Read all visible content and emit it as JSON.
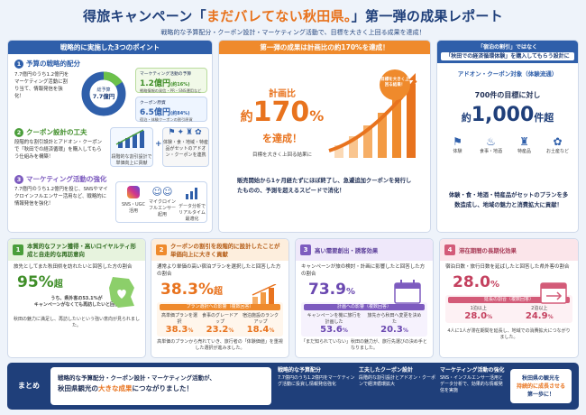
{
  "header": {
    "title_pre": "得旅キャンペーン「",
    "title_hl": "まだバレてない秋田県。",
    "title_post": "」第一弾の成果レポート",
    "subtitle": "戦略的な予算配分・クーポン設計・マーケティング活動で、目標を大きく上回る成果を達成！"
  },
  "col1": {
    "title": "戦略的に実施した3つのポイント",
    "p1": {
      "num": "1",
      "heading": "予算の戦略的配分",
      "text": "7.7億円のうち1.2億円をマーケティング活動に割り当て、情報発信を強化！",
      "donut_label": "総予算",
      "donut_value": "7.7億円",
      "mkt_label": "マーケティング活動の予算",
      "mkt_value": "1.2億円",
      "mkt_pct": "(約16%)",
      "mkt_note": "戦略情報の発信・PR・SNS運用など",
      "coupon_label": "クーポン原資",
      "coupon_value": "6.5億円",
      "coupon_pct": "(約84%)",
      "coupon_note": "宿泊・体験クーポンの割引原資",
      "share_mkt": 16,
      "share_coupon": 84
    },
    "p2": {
      "num": "2",
      "heading": "クーポン設計の工夫",
      "text": "段階的な割引設計とアドオン・クーポンで「秋田での経済循環」を購入してもらう仕組みを構築！",
      "chart_caption": "段階的な割引設計で単価向上に貢献",
      "addon_caption": "体験・食・地域・特産品がセットのアドオン・クーポンを連携"
    },
    "p3": {
      "num": "3",
      "heading": "マーケティング活動の強化",
      "text": "7.7億円のうち1.2億円を投じ、SNSやマイクロインフルエンサー活用など、戦略的に情報発信を強化！",
      "i1": "SNS・UGC活用",
      "i2": "マイクロインフルエンサー起用",
      "i3": "データ分析でリアルタイム最適化"
    }
  },
  "col2": {
    "title": "第一弾の成果は計画比の約170%を達成！",
    "ratio_label": "計画比",
    "ratio_prefix": "約",
    "ratio_value": "170",
    "ratio_unit": "%",
    "ratio_suffix": "を達成！",
    "note": "目標を大きく上回る結果に",
    "callout": "目標を大きく上回る結果！",
    "text": "販売開始から1ヶ月経たずにほぼ終了し、急遽追加クーポンを発行したものの、予測を超えるスピードで消化！"
  },
  "col3": {
    "title1": "「宿泊の割引」ではなく",
    "title2": "「秋田での経済循環体験」を購入してもらう設計に",
    "addon_label": "アドオン・クーポン対象（体験流通）",
    "target_text": "700件の目標に対し",
    "result_prefix": "約",
    "result_value": "1,000",
    "result_unit": "件超",
    "cats": [
      "体験",
      "食事・地酒",
      "特産品",
      "お土産など"
    ],
    "text": "体験・食・地酒・特産品がセットのプランを多数造成し、地域の魅力と消費拡大に貢献！"
  },
  "b1": {
    "num": "1",
    "heading": "本質的なファン獲得・高いロイヤルティ形成と自走的な再訪意向",
    "desc": "旅先としてまた秋田県を訪れたいと回答した方の割合",
    "value": "95%",
    "suffix": "超",
    "note1": "うち、県外客の53.1%が",
    "note2": "キャンペーンがなくても再訪したいと回答",
    "foot": "秋田の魅力に満足し、再訪したいという強い意向が見られました。",
    "ratio": 95
  },
  "b2": {
    "num": "2",
    "heading": "クーポンの割引を段階的に設計したことが単価向上に大きく貢献",
    "desc": "通常より単価の高い宿泊プランを選択したと回答した方の割合",
    "value": "38.3%",
    "suffix": "超",
    "sub_title": "プラン選択への影響（複数回答）",
    "s1_label": "高単価プランを選択",
    "s1_value": "38.3",
    "s1_unit": "%",
    "s2_label": "食事のグレードアップ",
    "s2_value": "23.2",
    "s2_unit": "%",
    "s3_label": "宿泊施設のランクアップ",
    "s3_value": "18.4",
    "s3_unit": "%",
    "foot": "高単価のプランから売れていき、旅行者の「体験価値」を重視した選択が進みました。",
    "ratio": 38.3
  },
  "b3": {
    "num": "3",
    "heading": "高い需要創出・誘客効果",
    "desc": "キャンペーンが旅の検討・計画に影響したと回答した方の割合",
    "value": "73.9",
    "unit": "%",
    "sub_title": "計画への影響（複数回答）",
    "s1_label": "キャンペーンを機に旅行を計画した",
    "s1_value": "53.6",
    "s1_unit": "%",
    "s2_label": "旅先から秋田へ変更を決めた",
    "s2_value": "20.3",
    "s2_unit": "%",
    "foot": "「まだ知られていない」秋田の魅力が、旅行先選びの決め手となりました。",
    "ratio": 73.9
  },
  "b4": {
    "num": "4",
    "heading": "滞在期間の長期化効果",
    "desc": "宿泊日数・旅行日数を延ばしたと回答した県外客の割合",
    "value": "28.0",
    "unit": "%",
    "sub_title": "延長の割合（複数回答）",
    "s1_label": "1泊以上",
    "s1_value": "28.0",
    "s1_unit": "%",
    "s2_label": "2泊以上",
    "s2_value": "24.9",
    "s2_unit": "%",
    "foot": "4人に1人が滞在期間を延長し、地域での消費拡大につながりました。",
    "ratio": 28
  },
  "summary": {
    "label": "まとめ",
    "line1": "戦略的な予算配分・クーポン設計・マーケティング活動が、",
    "line2_a": "秋田県観光の",
    "line2_b": "大きな成果",
    "line2_c": "につながりました！",
    "i1_title": "戦略的な予算配分",
    "i1_text": "7.7億円のうち1.2億円をマーケティング活動に投資し情報発信強化",
    "i2_title": "工夫したクーポン設計",
    "i2_text": "段階的な割引設計とアドオン・クーポンで経済循環拡大",
    "i3_title": "マーケティング活動の強化",
    "i3_text": "SNS・インフルエンサー活用とデータ分析で、効果的な情報発信を実施",
    "final1": "秋田県の観光を",
    "final2": "持続的に成長させる",
    "final3": "第一歩に！"
  },
  "colors": {
    "navy": "#1f3f7a",
    "orange": "#ef8a2c",
    "green": "#4a9e3a",
    "purple": "#7d5bbf",
    "pink": "#d35b78",
    "blue": "#2f5faa"
  }
}
